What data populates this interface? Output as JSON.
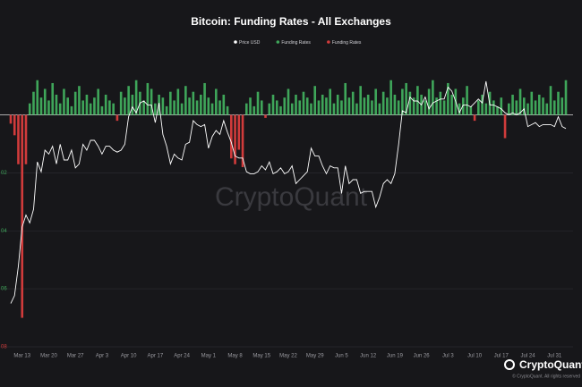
{
  "chart_data": {
    "type": "bar-line",
    "title": "Bitcoin: Funding Rates - All Exchanges",
    "watermark": "CryptoQuant",
    "brand": "CryptoQuant",
    "copyright": "© CryptoQuant. All rights reserved",
    "categories": [
      null,
      null,
      null,
      "Mar 13",
      null,
      null,
      null,
      null,
      null,
      null,
      "Mar 20",
      null,
      null,
      null,
      null,
      null,
      null,
      "Mar 27",
      null,
      null,
      null,
      null,
      null,
      null,
      "Apr 3",
      null,
      null,
      null,
      null,
      null,
      null,
      "Apr 10",
      null,
      null,
      null,
      null,
      null,
      null,
      "Apr 17",
      null,
      null,
      null,
      null,
      null,
      null,
      "Apr 24",
      null,
      null,
      null,
      null,
      null,
      null,
      "May 1",
      null,
      null,
      null,
      null,
      null,
      null,
      "May 8",
      null,
      null,
      null,
      null,
      null,
      null,
      "May 15",
      null,
      null,
      null,
      null,
      null,
      null,
      "May 22",
      null,
      null,
      null,
      null,
      null,
      null,
      "May 29",
      null,
      null,
      null,
      null,
      null,
      null,
      "Jun 5",
      null,
      null,
      null,
      null,
      null,
      null,
      "Jun 12",
      null,
      null,
      null,
      null,
      null,
      null,
      "Jun 19",
      null,
      null,
      null,
      null,
      null,
      null,
      "Jun 26",
      null,
      null,
      null,
      null,
      null,
      null,
      "Jul 3",
      null,
      null,
      null,
      null,
      null,
      null,
      "Jul 10",
      null,
      null,
      null,
      null,
      null,
      null,
      "Jul 17",
      null,
      null,
      null,
      null,
      null,
      null,
      "Jul 24",
      null,
      null,
      null,
      null,
      null,
      null,
      "Jul 31",
      null,
      null,
      null
    ],
    "ylim": [
      -0.08,
      0.015
    ],
    "yticks": [
      {
        "value": -0.02,
        "label": "02"
      },
      {
        "value": -0.04,
        "label": "04"
      },
      {
        "value": -0.06,
        "label": "06"
      },
      {
        "value": -0.08,
        "label": "08"
      }
    ],
    "y2lim": [
      18000,
      32000
    ],
    "grid": true,
    "series": [
      {
        "name": "Price USD",
        "color": "#ffffff",
        "axis": "y2",
        "values": [
          20200,
          20600,
          22100,
          24100,
          24700,
          24300,
          25000,
          27400,
          26900,
          28000,
          27800,
          28200,
          27300,
          28300,
          27500,
          27500,
          28000,
          27100,
          27300,
          28300,
          28000,
          28500,
          28500,
          28200,
          27800,
          28200,
          28200,
          28000,
          27900,
          28000,
          28300,
          29700,
          30200,
          29900,
          30400,
          30500,
          30300,
          30300,
          29400,
          30400,
          28800,
          28200,
          27300,
          27800,
          27600,
          27500,
          28300,
          28400,
          29500,
          29300,
          29200,
          29300,
          28100,
          28700,
          29000,
          28800,
          29500,
          28900,
          28400,
          27700,
          27600,
          27600,
          26900,
          26800,
          26800,
          26900,
          27200,
          27000,
          27400,
          26800,
          26900,
          27100,
          26800,
          26900,
          27200,
          26300,
          26500,
          26700,
          26900,
          28100,
          27700,
          27700,
          27200,
          26800,
          27200,
          27100,
          27100,
          25800,
          27200,
          26300,
          26500,
          26500,
          25800,
          25900,
          25900,
          25900,
          25100,
          25600,
          26300,
          26500,
          26300,
          26800,
          28300,
          30000,
          29900,
          30700,
          30500,
          30500,
          30300,
          30700,
          30100,
          30400,
          30500,
          30600,
          30600,
          31200,
          31000,
          30500,
          29900,
          30300,
          30300,
          30200,
          30400,
          30600,
          30400,
          31500,
          30300,
          30300,
          30200,
          30100,
          29900,
          29800,
          29900,
          29800,
          29900,
          30100,
          29200,
          29300,
          29400,
          29200,
          29300,
          29300,
          29300,
          29200,
          29700,
          29200,
          29100
        ]
      },
      {
        "name": "Funding Rates",
        "color": "#3fa65a",
        "negative_name": "Funding Rates",
        "negative_color": "#d13b3b",
        "values": [
          -0.003,
          -0.007,
          -0.017,
          -0.07,
          -0.017,
          0.004,
          0.008,
          0.012,
          0.006,
          0.009,
          0.005,
          0.011,
          0.007,
          0.004,
          0.009,
          0.006,
          0.003,
          0.008,
          0.01,
          0.005,
          0.007,
          0.004,
          0.006,
          0.009,
          0.003,
          0.007,
          0.005,
          0.004,
          -0.002,
          0.008,
          0.006,
          0.01,
          0.007,
          0.012,
          0.008,
          0.005,
          0.011,
          0.009,
          0.004,
          0.007,
          0.006,
          0.003,
          0.008,
          0.005,
          0.009,
          0.004,
          0.01,
          0.006,
          0.008,
          0.005,
          0.007,
          0.011,
          0.006,
          0.004,
          0.009,
          0.005,
          0.007,
          0.003,
          -0.015,
          -0.017,
          -0.012,
          -0.018,
          0.004,
          0.006,
          0.003,
          0.008,
          0.005,
          -0.001,
          0.004,
          0.007,
          0.005,
          0.003,
          0.006,
          0.009,
          0.004,
          0.007,
          0.005,
          0.008,
          0.006,
          0.004,
          0.01,
          0.005,
          0.007,
          0.006,
          0.009,
          0.004,
          0.007,
          0.005,
          0.011,
          0.006,
          0.008,
          0.004,
          0.01,
          0.006,
          0.007,
          0.005,
          0.009,
          0.004,
          0.008,
          0.006,
          0.012,
          0.007,
          0.005,
          0.009,
          0.011,
          0.008,
          0.006,
          0.01,
          0.007,
          0.005,
          0.009,
          0.012,
          0.006,
          0.008,
          0.005,
          0.011,
          0.007,
          0.009,
          0.004,
          0.006,
          0.01,
          0.003,
          -0.002,
          0.005,
          0.007,
          0.004,
          0.008,
          0.005,
          0.003,
          0.006,
          -0.008,
          0.004,
          0.007,
          0.005,
          0.009,
          0.006,
          0.004,
          0.008,
          0.005,
          0.007,
          0.006,
          0.004,
          0.01,
          0.005,
          0.008,
          0.006,
          0.012
        ]
      }
    ]
  }
}
